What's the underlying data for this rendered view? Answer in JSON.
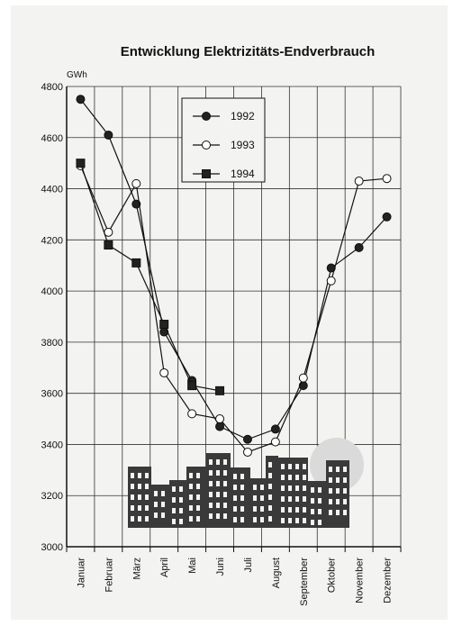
{
  "chart_data": {
    "type": "line",
    "title": "Entwicklung Elektrizitäts-Endverbrauch",
    "ylabel": "GWh",
    "xlabel": "",
    "ylim": [
      3000,
      4800
    ],
    "yticks": [
      3000,
      3200,
      3400,
      3600,
      3800,
      4000,
      4200,
      4400,
      4600,
      4800
    ],
    "grid": true,
    "legend_position": "top-center",
    "categories": [
      "Januar",
      "Februar",
      "März",
      "April",
      "Mai",
      "Juni",
      "Juli",
      "August",
      "September",
      "Oktober",
      "November",
      "Dezember"
    ],
    "series": [
      {
        "name": "1992",
        "marker": "filled-circle",
        "values": [
          4750,
          4610,
          4340,
          3840,
          3650,
          3470,
          3420,
          3460,
          3630,
          4090,
          4170,
          4290
        ]
      },
      {
        "name": "1993",
        "marker": "open-circle",
        "values": [
          4490,
          4230,
          4420,
          3680,
          3520,
          3500,
          3370,
          3410,
          3660,
          4040,
          4430,
          4440
        ]
      },
      {
        "name": "1994",
        "marker": "square",
        "values": [
          4500,
          4180,
          4110,
          3870,
          3630,
          3610,
          null,
          null,
          null,
          null,
          null,
          null
        ]
      }
    ]
  }
}
